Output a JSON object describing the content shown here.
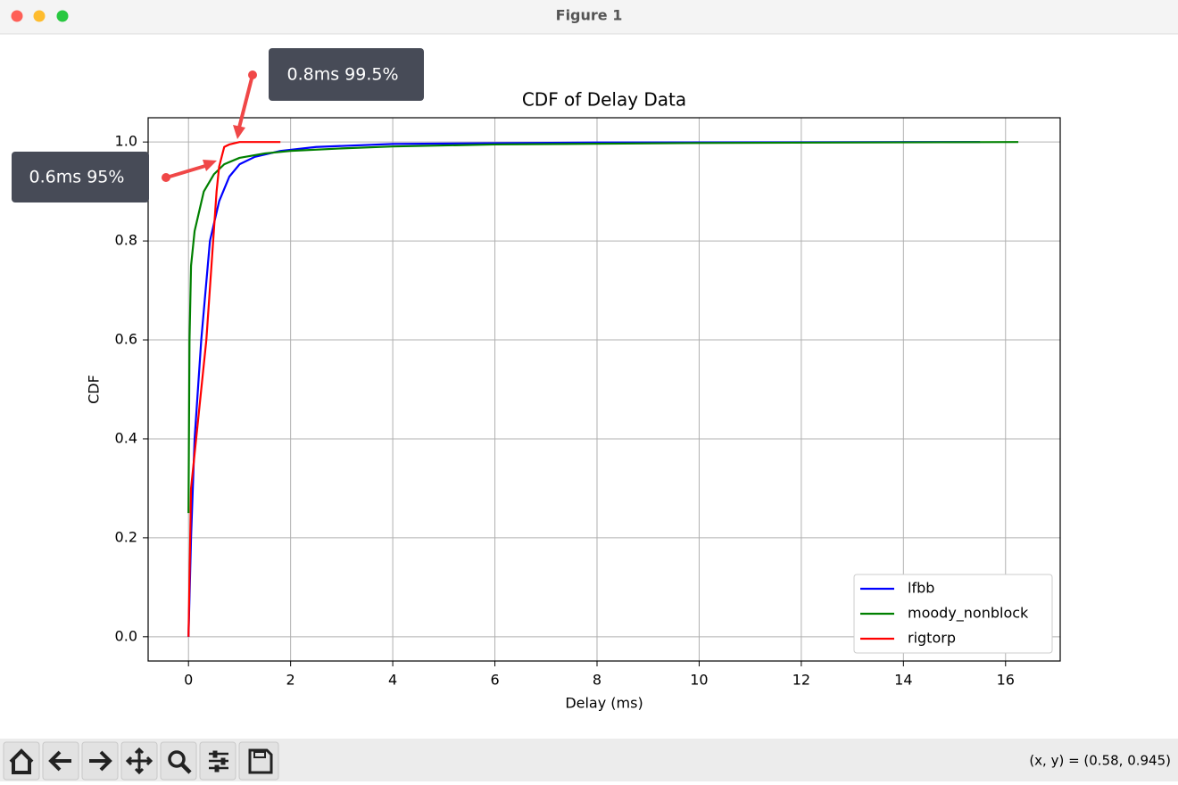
{
  "window": {
    "title": "Figure 1",
    "status": "(x, y) = (0.58, 0.945)"
  },
  "chart_data": {
    "type": "line",
    "title": "CDF of Delay Data",
    "x_label": "Delay (ms)",
    "y_label": "CDF",
    "xlim": [
      -0.79,
      17.07
    ],
    "ylim": [
      -0.049,
      1.049
    ],
    "xticks": [
      0,
      2,
      4,
      6,
      8,
      10,
      12,
      14,
      16
    ],
    "yticks": [
      {
        "value": 0,
        "label": "0.0"
      },
      0.2,
      0.4,
      0.6,
      0.8,
      {
        "value": 1,
        "label": "1.0"
      }
    ],
    "grid": true,
    "legend": "lower right",
    "series": [
      {
        "name": "lfbb",
        "color": "#0000ff",
        "x": [
          0,
          0.05,
          0.12,
          0.25,
          0.42,
          0.6,
          0.8,
          1.0,
          1.3,
          1.8,
          2.5,
          4,
          8,
          15.5
        ],
        "values": [
          0,
          0.2,
          0.4,
          0.6,
          0.8,
          0.88,
          0.93,
          0.955,
          0.97,
          0.982,
          0.99,
          0.996,
          0.999,
          1.0
        ]
      },
      {
        "name": "moody_nonblock",
        "color": "#008000",
        "x": [
          0,
          0.02,
          0.05,
          0.12,
          0.3,
          0.5,
          0.7,
          1.0,
          1.5,
          2,
          3,
          4,
          6,
          10,
          16.25
        ],
        "values": [
          0.25,
          0.6,
          0.75,
          0.82,
          0.9,
          0.935,
          0.955,
          0.968,
          0.977,
          0.982,
          0.987,
          0.991,
          0.995,
          0.998,
          1.0
        ]
      },
      {
        "name": "rigtorp",
        "color": "#ff0000",
        "x": [
          0,
          0.05,
          0.2,
          0.35,
          0.45,
          0.55,
          0.6,
          0.7,
          0.8,
          1.0,
          1.8
        ],
        "values": [
          0,
          0.3,
          0.45,
          0.6,
          0.75,
          0.9,
          0.95,
          0.99,
          0.995,
          1.0,
          1.0
        ]
      }
    ],
    "annotations": [
      "0.8ms 99.5%",
      "0.6ms 95%"
    ]
  }
}
